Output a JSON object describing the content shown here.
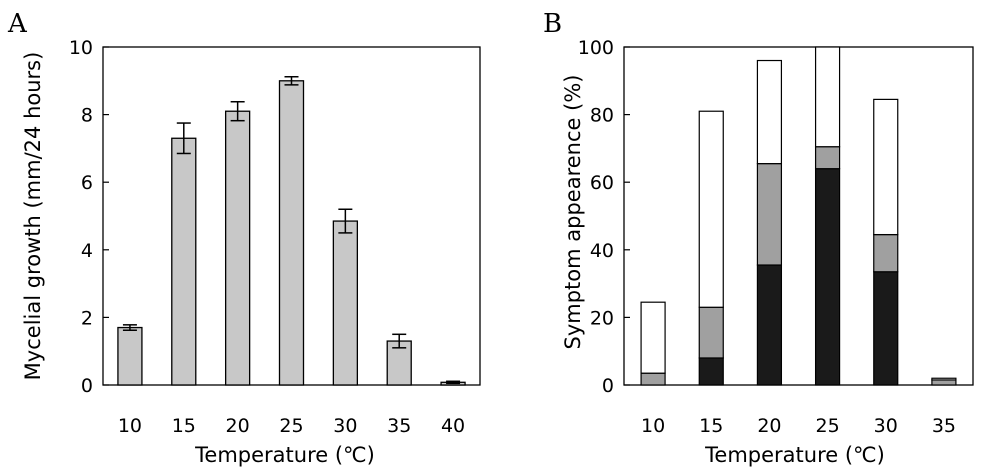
{
  "chart_data": [
    {
      "panel": "A",
      "type": "bar",
      "categories": [
        "10",
        "15",
        "20",
        "25",
        "30",
        "35",
        "40"
      ],
      "values": [
        1.7,
        7.3,
        8.1,
        9.0,
        4.85,
        1.3,
        0.08
      ],
      "errors": [
        0.08,
        0.45,
        0.28,
        0.12,
        0.35,
        0.2,
        0.03
      ],
      "xlabel": "Temperature (℃)",
      "ylabel": "Mycelial growth (mm/24 hours)",
      "ylim": [
        0,
        10
      ],
      "yticks": [
        "0",
        "2",
        "4",
        "6",
        "8",
        "10"
      ],
      "grid": false,
      "colors": {
        "bar": "#c8c8c8"
      }
    },
    {
      "panel": "B",
      "type": "bar",
      "stacked": true,
      "categories": [
        "10",
        "15",
        "20",
        "25",
        "30",
        "35"
      ],
      "series": [
        {
          "values": [
            0,
            8,
            35.5,
            64,
            33.5,
            0
          ],
          "color": "#1a1a1a"
        },
        {
          "values": [
            3.5,
            15,
            30,
            6.5,
            11,
            1.5
          ],
          "color": "#a0a0a0"
        },
        {
          "values": [
            21,
            58,
            30.5,
            30,
            40,
            0.5
          ],
          "color": "#ffffff"
        }
      ],
      "xlabel": "Temperature (℃)",
      "ylabel": "Symptom appearence (%)",
      "ylim": [
        0,
        100
      ],
      "yticks": [
        "0",
        "20",
        "40",
        "60",
        "80",
        "100"
      ],
      "grid": false
    }
  ]
}
